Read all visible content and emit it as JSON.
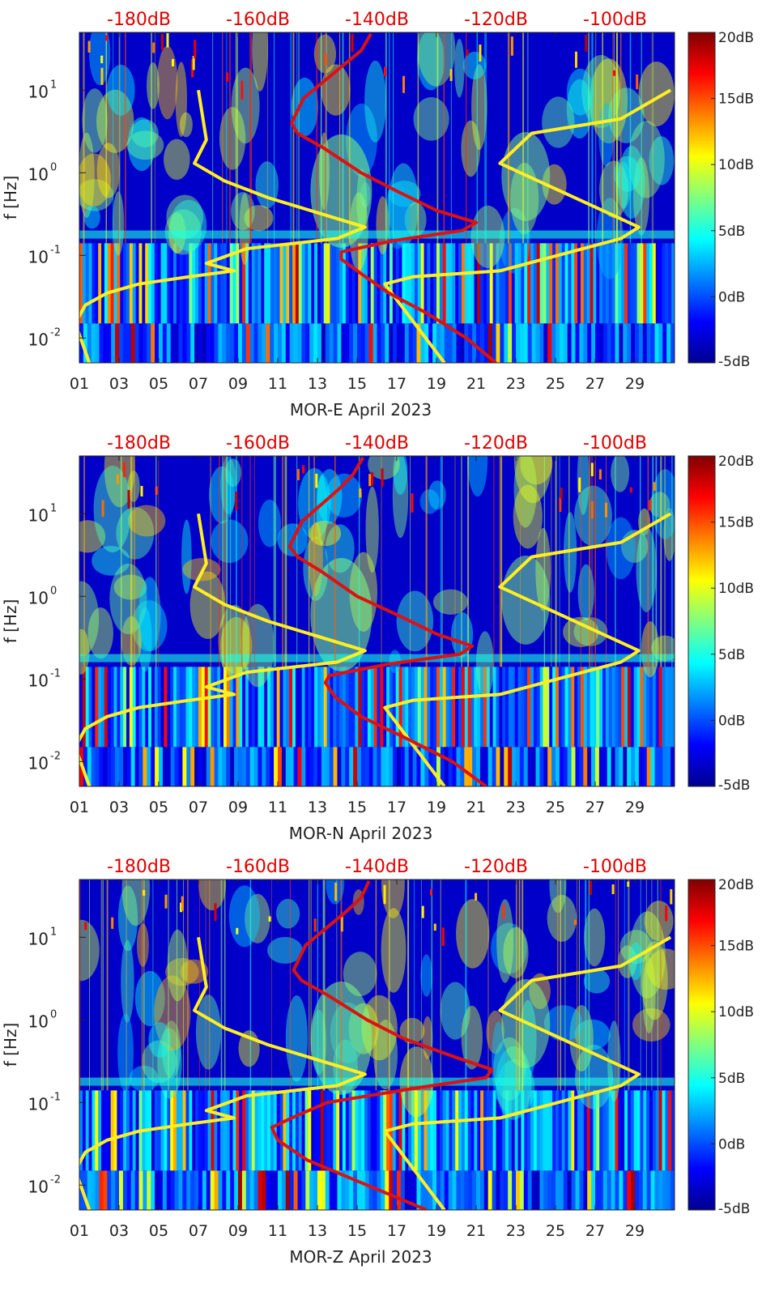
{
  "figure": {
    "y_tick_labels": [
      "10",
      "10",
      "10",
      "10"
    ],
    "y_tick_exponents": [
      "1",
      "0",
      "-1",
      "-2"
    ],
    "top_axis_labels": [
      "-180dB",
      "-160dB",
      "-140dB",
      "-120dB",
      "-100dB"
    ],
    "colorbar_labels": [
      "20dB",
      "15dB",
      "10dB",
      "5dB",
      "0dB",
      "-5dB"
    ],
    "colors": {
      "red_curve": "#dd1111",
      "yellow_curves": "#ffee22",
      "top_label": "#e00000",
      "colormap": [
        "#00008f",
        "#0000ff",
        "#0080ff",
        "#00ffff",
        "#80ff80",
        "#ffff00",
        "#ff8000",
        "#ff0000",
        "#800000"
      ]
    }
  },
  "chart_data": [
    {
      "type": "heatmap",
      "station": "MOR-E",
      "xlabel": "MOR-E April 2023",
      "ylabel": "f [Hz]",
      "x_tick_labels": [
        "01",
        "03",
        "05",
        "07",
        "09",
        "11",
        "13",
        "15",
        "17",
        "19",
        "21",
        "23",
        "25",
        "27",
        "29"
      ],
      "xlim": [
        1,
        31
      ],
      "ylim_hz": [
        0.005,
        50
      ],
      "colorbar_range_db": [
        -5,
        20
      ],
      "top_axis_range_db": [
        -190,
        -90
      ],
      "curves": {
        "red_psd_curve": [
          [
            0.005,
            22
          ],
          [
            0.01,
            20.5
          ],
          [
            0.02,
            18.5
          ],
          [
            0.035,
            16.6
          ],
          [
            0.06,
            15.2
          ],
          [
            0.09,
            14.2
          ],
          [
            0.11,
            14.2
          ],
          [
            0.15,
            16.8
          ],
          [
            0.2,
            20.3
          ],
          [
            0.25,
            21
          ],
          [
            0.35,
            19
          ],
          [
            0.6,
            17
          ],
          [
            1,
            15.2
          ],
          [
            2,
            13.3
          ],
          [
            3,
            12
          ],
          [
            4,
            11.7
          ],
          [
            8,
            12.3
          ],
          [
            20,
            14.3
          ],
          [
            30,
            15.2
          ],
          [
            48,
            15.7
          ]
        ],
        "yellow_low_noise_model": [
          [
            0.005,
            1.5
          ],
          [
            0.015,
            0.8
          ],
          [
            0.025,
            1.3
          ],
          [
            0.035,
            2.4
          ],
          [
            0.045,
            4
          ],
          [
            0.055,
            6.5
          ],
          [
            0.065,
            8.8
          ],
          [
            0.08,
            7.4
          ],
          [
            0.12,
            9.4
          ],
          [
            0.16,
            14
          ],
          [
            0.22,
            15.4
          ],
          [
            0.5,
            10.5
          ],
          [
            0.8,
            8.3
          ],
          [
            1.3,
            6.8
          ],
          [
            2.5,
            7.4
          ],
          [
            10,
            7
          ]
        ],
        "yellow_high_noise_model": [
          [
            0.005,
            19.4
          ],
          [
            0.045,
            16.4
          ],
          [
            0.055,
            17.8
          ],
          [
            0.065,
            22.2
          ],
          [
            0.16,
            28.3
          ],
          [
            0.22,
            29.2
          ],
          [
            1.3,
            22.2
          ],
          [
            3,
            23.8
          ],
          [
            4.5,
            28.3
          ],
          [
            10,
            30.8
          ]
        ]
      }
    },
    {
      "type": "heatmap",
      "station": "MOR-N",
      "xlabel": "MOR-N April 2023",
      "ylabel": "f [Hz]",
      "x_tick_labels": [
        "01",
        "03",
        "05",
        "07",
        "09",
        "11",
        "13",
        "15",
        "17",
        "19",
        "21",
        "23",
        "25",
        "27",
        "29"
      ],
      "xlim": [
        1,
        31
      ],
      "ylim_hz": [
        0.005,
        50
      ],
      "colorbar_range_db": [
        -5,
        20
      ],
      "top_axis_range_db": [
        -190,
        -90
      ],
      "curves": {
        "red_psd_curve": [
          [
            0.005,
            21.5
          ],
          [
            0.01,
            19.8
          ],
          [
            0.02,
            17.3
          ],
          [
            0.035,
            15.2
          ],
          [
            0.06,
            13.9
          ],
          [
            0.09,
            13.4
          ],
          [
            0.11,
            13.6
          ],
          [
            0.15,
            16.5
          ],
          [
            0.2,
            20.2
          ],
          [
            0.25,
            20.8
          ],
          [
            0.35,
            19
          ],
          [
            0.6,
            17
          ],
          [
            1,
            15
          ],
          [
            2,
            13.2
          ],
          [
            3,
            12
          ],
          [
            4,
            11.6
          ],
          [
            8,
            12.2
          ],
          [
            20,
            14.1
          ],
          [
            30,
            14.8
          ],
          [
            48,
            15.3
          ]
        ],
        "yellow_low_noise_model": [
          [
            0.005,
            1.5
          ],
          [
            0.015,
            0.8
          ],
          [
            0.025,
            1.3
          ],
          [
            0.035,
            2.4
          ],
          [
            0.045,
            4
          ],
          [
            0.055,
            6.5
          ],
          [
            0.065,
            8.8
          ],
          [
            0.08,
            7.4
          ],
          [
            0.12,
            9.4
          ],
          [
            0.16,
            14
          ],
          [
            0.22,
            15.4
          ],
          [
            0.5,
            10.5
          ],
          [
            0.8,
            8.3
          ],
          [
            1.3,
            6.8
          ],
          [
            2.5,
            7.4
          ],
          [
            10,
            7
          ]
        ],
        "yellow_high_noise_model": [
          [
            0.005,
            19.4
          ],
          [
            0.045,
            16.4
          ],
          [
            0.055,
            17.8
          ],
          [
            0.065,
            22.2
          ],
          [
            0.16,
            28.3
          ],
          [
            0.22,
            29.2
          ],
          [
            1.3,
            22.2
          ],
          [
            3,
            23.8
          ],
          [
            4.5,
            28.3
          ],
          [
            10,
            30.8
          ]
        ]
      }
    },
    {
      "type": "heatmap",
      "station": "MOR-Z",
      "xlabel": "MOR-Z April 2023",
      "ylabel": "f [Hz]",
      "x_tick_labels": [
        "01",
        "03",
        "05",
        "07",
        "09",
        "11",
        "13",
        "15",
        "17",
        "19",
        "21",
        "23",
        "25",
        "27",
        "29"
      ],
      "xlim": [
        1,
        31
      ],
      "ylim_hz": [
        0.005,
        50
      ],
      "colorbar_range_db": [
        -5,
        20
      ],
      "top_axis_range_db": [
        -190,
        -90
      ],
      "curves": {
        "red_psd_curve": [
          [
            0.005,
            18.5
          ],
          [
            0.01,
            15.5
          ],
          [
            0.02,
            12.5
          ],
          [
            0.035,
            11
          ],
          [
            0.05,
            10.7
          ],
          [
            0.07,
            12
          ],
          [
            0.1,
            13.5
          ],
          [
            0.15,
            18
          ],
          [
            0.2,
            21.5
          ],
          [
            0.25,
            21.8
          ],
          [
            0.35,
            20
          ],
          [
            0.6,
            17.3
          ],
          [
            1,
            15.5
          ],
          [
            2,
            13.5
          ],
          [
            3,
            12.2
          ],
          [
            4,
            11.8
          ],
          [
            8,
            12.4
          ],
          [
            20,
            14.4
          ],
          [
            30,
            15.2
          ],
          [
            48,
            15.6
          ]
        ],
        "yellow_low_noise_model": [
          [
            0.005,
            1.5
          ],
          [
            0.015,
            0.8
          ],
          [
            0.025,
            1.3
          ],
          [
            0.035,
            2.4
          ],
          [
            0.045,
            4
          ],
          [
            0.055,
            6.5
          ],
          [
            0.065,
            8.8
          ],
          [
            0.08,
            7.4
          ],
          [
            0.12,
            9.4
          ],
          [
            0.16,
            14
          ],
          [
            0.22,
            15.4
          ],
          [
            0.5,
            10.5
          ],
          [
            0.8,
            8.3
          ],
          [
            1.3,
            6.8
          ],
          [
            2.5,
            7.4
          ],
          [
            10,
            7
          ]
        ],
        "yellow_high_noise_model": [
          [
            0.005,
            19.4
          ],
          [
            0.045,
            16.4
          ],
          [
            0.055,
            17.8
          ],
          [
            0.065,
            22.2
          ],
          [
            0.16,
            28.3
          ],
          [
            0.22,
            29.2
          ],
          [
            1.3,
            22.2
          ],
          [
            3,
            23.8
          ],
          [
            4.5,
            28.3
          ],
          [
            10,
            30.8
          ]
        ]
      }
    }
  ]
}
